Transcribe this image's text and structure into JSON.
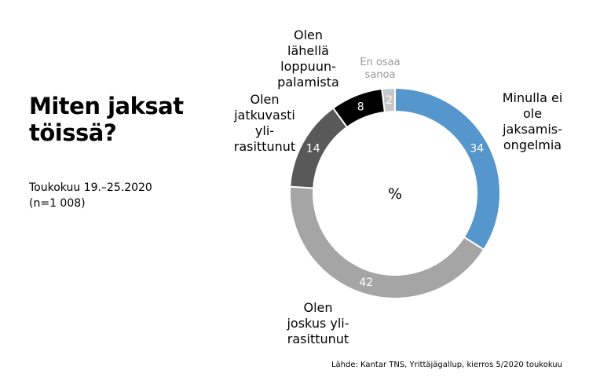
{
  "title": "Miten jaksat töissä?",
  "subtitle_lines": [
    "Toukokuu 19.–25.2020",
    "(n=1 008)"
  ],
  "source": "Lähde: Kantar TNS, Yrittäjägallup, kierros 5/2020 toukokuu",
  "chart_data": {
    "type": "pie",
    "donut": true,
    "center_label": "%",
    "legend": "none",
    "slices": [
      {
        "label": "Minulla ei\nole\njaksamis-\nongelmia",
        "value": 34,
        "color": "#5596cd"
      },
      {
        "label": "Olen\njoskus yli-\nrasittunut",
        "value": 42,
        "color": "#a5a5a5"
      },
      {
        "label": "Olen\njatkuvasti\nyli-\nrasittunut",
        "value": 14,
        "color": "#595959"
      },
      {
        "label": "Olen\nlähellä\nloppuun-\npalamista",
        "value": 8,
        "color": "#000000"
      },
      {
        "label": "En osaa\nsanoa",
        "value": 2,
        "color": "#c8c8c8"
      }
    ]
  }
}
